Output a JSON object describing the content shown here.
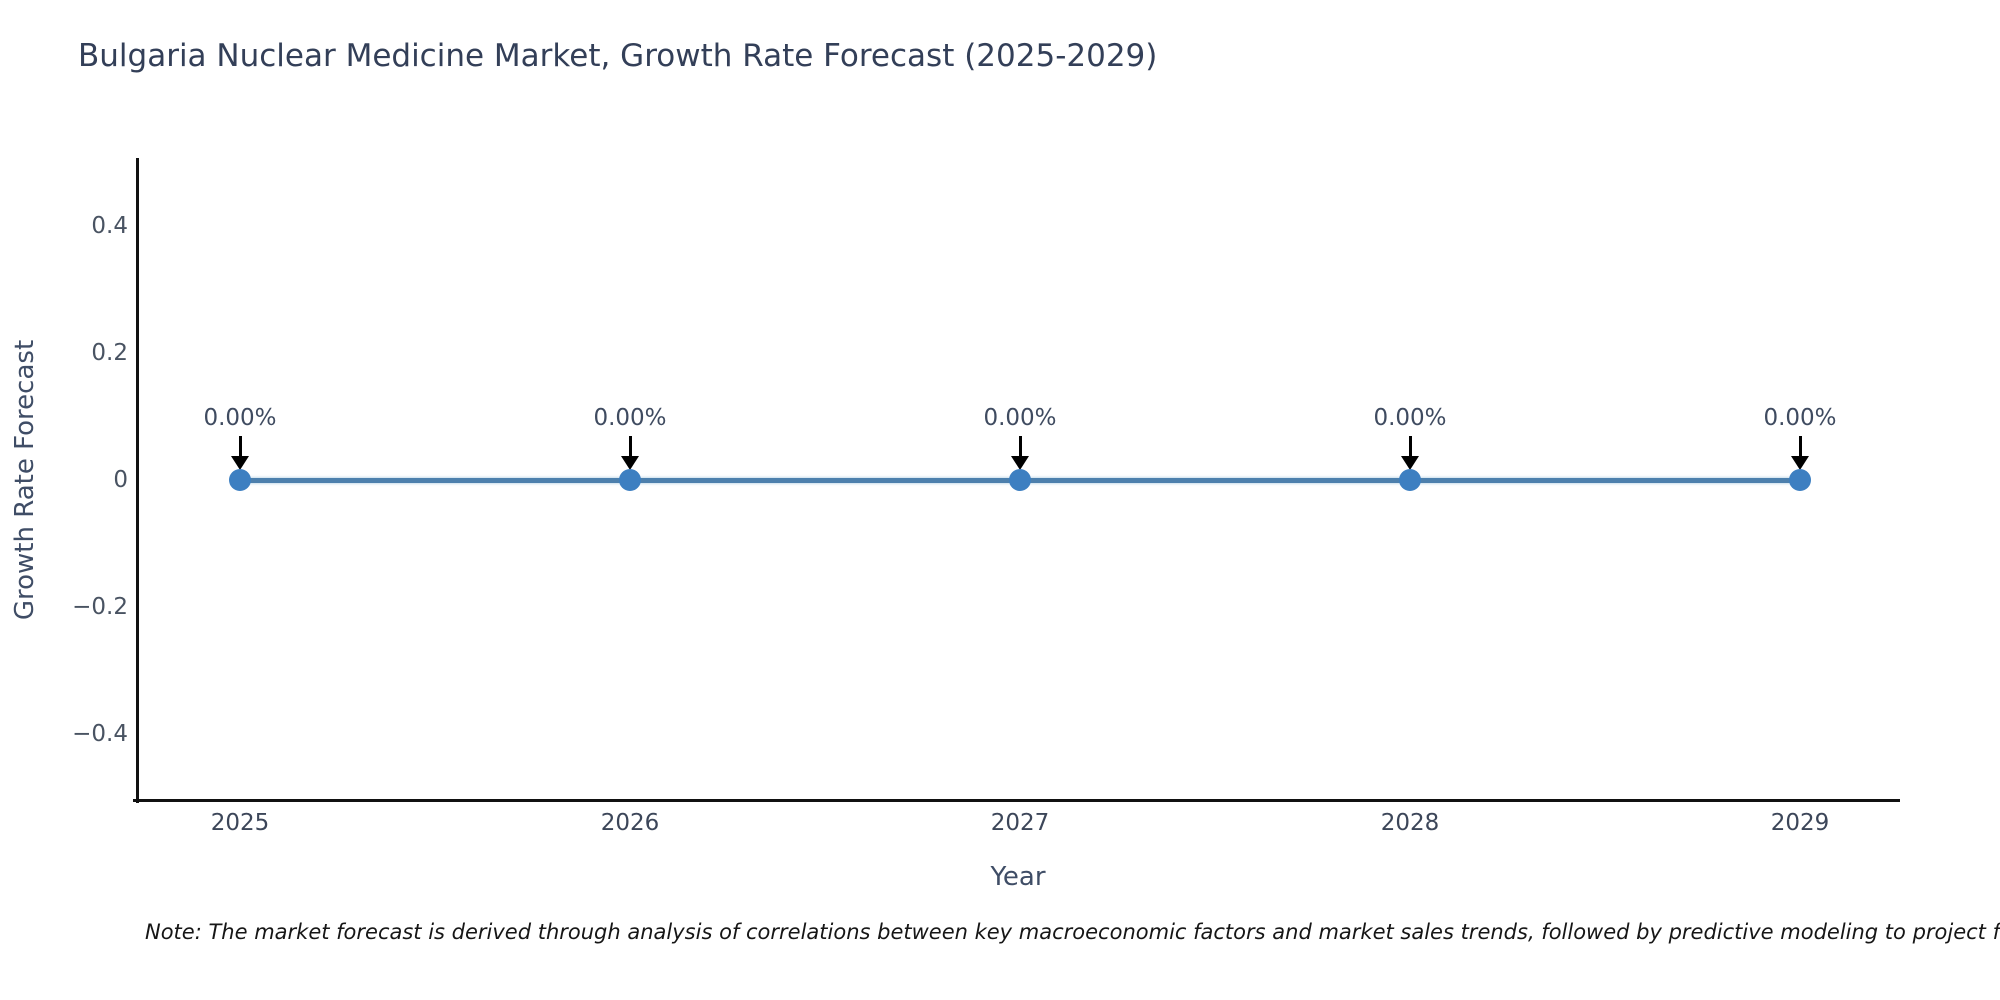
{
  "note": "Note: The market forecast is derived through analysis of correlations between key macroeconomic factors and market sales trends, followed by predictive modeling to project future sa",
  "colors": {
    "title": "#333f58",
    "axis_spine": "#111111",
    "tick_label": "#495362",
    "axis_label": "#3f4d66",
    "line": "#4d80ad",
    "marker": "#3d7fc1",
    "annotation_text": "#3f4b60",
    "annotation_arrow": "#000000",
    "background": "#ffffff"
  },
  "chart_data": {
    "type": "line",
    "title": "Bulgaria Nuclear Medicine Market, Growth Rate Forecast (2025-2029)",
    "xlabel": "Year",
    "ylabel": "Growth Rate Forecast",
    "x": [
      "2025",
      "2026",
      "2027",
      "2028",
      "2029"
    ],
    "series": [
      {
        "name": "Growth Rate Forecast",
        "values": [
          0,
          0,
          0,
          0,
          0
        ]
      }
    ],
    "point_labels": [
      "0.00%",
      "0.00%",
      "0.00%",
      "0.00%",
      "0.00%"
    ],
    "yticks": {
      "values": [
        0.4,
        0.2,
        0,
        -0.2,
        -0.4
      ],
      "labels": [
        "0.4",
        "0.2",
        "0",
        "−0.2",
        "−0.4"
      ]
    },
    "ylim": [
      -0.5,
      0.5
    ],
    "grid": false,
    "legend": false,
    "marker_style": "circle",
    "annotation_arrow": "down"
  }
}
